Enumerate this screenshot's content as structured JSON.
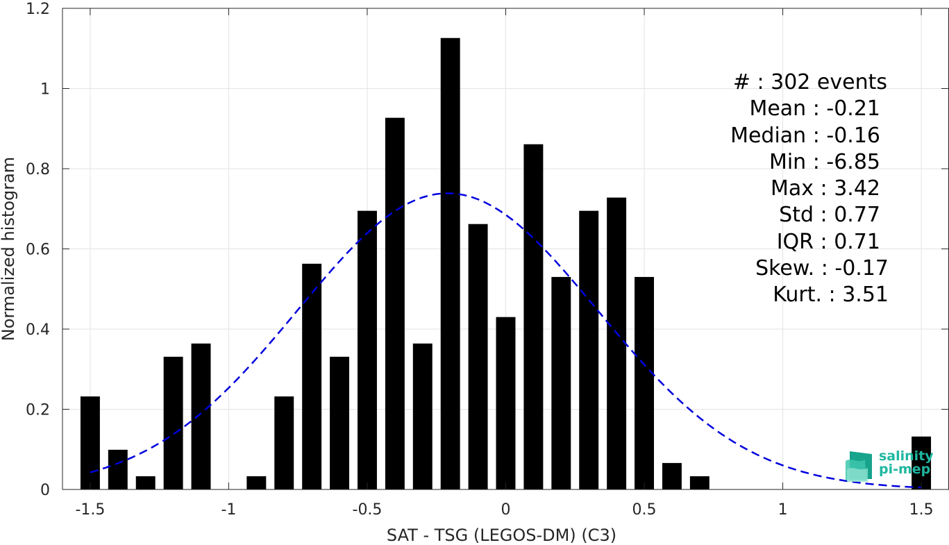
{
  "chart_data": {
    "type": "bar",
    "xlabel": "SAT - TSG (LEGOS-DM) (C3)",
    "ylabel": "Normalized histogram",
    "xlim": [
      -1.6,
      1.6
    ],
    "ylim": [
      0,
      1.2
    ],
    "xticks": [
      -1.5,
      -1,
      -0.5,
      0,
      0.5,
      1,
      1.5
    ],
    "xtick_labels": [
      "-1.5",
      "-1",
      "-0.5",
      "0",
      "0.5",
      "1",
      "1.5"
    ],
    "yticks": [
      0,
      0.2,
      0.4,
      0.6,
      0.8,
      1,
      1.2
    ],
    "ytick_labels": [
      "0",
      "0.2",
      "0.4",
      "0.6",
      "0.8",
      "1",
      "1.2"
    ],
    "grid": true,
    "bar_color": "#000000",
    "bar_width": 0.07,
    "bars": [
      {
        "x": -1.5,
        "y": 0.232
      },
      {
        "x": -1.4,
        "y": 0.099
      },
      {
        "x": -1.3,
        "y": 0.033
      },
      {
        "x": -1.2,
        "y": 0.331
      },
      {
        "x": -1.1,
        "y": 0.364
      },
      {
        "x": -0.9,
        "y": 0.033
      },
      {
        "x": -0.8,
        "y": 0.232
      },
      {
        "x": -0.7,
        "y": 0.563
      },
      {
        "x": -0.6,
        "y": 0.331
      },
      {
        "x": -0.5,
        "y": 0.695
      },
      {
        "x": -0.4,
        "y": 0.927
      },
      {
        "x": -0.3,
        "y": 0.364
      },
      {
        "x": -0.2,
        "y": 1.126
      },
      {
        "x": -0.1,
        "y": 0.662
      },
      {
        "x": 0.0,
        "y": 0.43
      },
      {
        "x": 0.1,
        "y": 0.861
      },
      {
        "x": 0.2,
        "y": 0.53
      },
      {
        "x": 0.3,
        "y": 0.695
      },
      {
        "x": 0.4,
        "y": 0.728
      },
      {
        "x": 0.5,
        "y": 0.53
      },
      {
        "x": 0.6,
        "y": 0.066
      },
      {
        "x": 0.7,
        "y": 0.033
      },
      {
        "x": 1.5,
        "y": 0.132
      }
    ],
    "fit": {
      "type": "normal",
      "mean": -0.21,
      "std": 0.54,
      "x_range": [
        -1.5,
        1.5
      ],
      "color": "#0000dd",
      "style": "dashed"
    }
  },
  "stats": {
    "count": "#  : 302 events",
    "mean": "Mean : -0.21",
    "median": "Median : -0.16",
    "min": "Min : -6.85",
    "max": "Max : 3.42",
    "std": "Std : 0.77",
    "iqr": "IQR : 0.71",
    "skew": "Skew. : -0.17",
    "kurt": "Kurt. : 3.51"
  },
  "logo": {
    "line1": "salinity",
    "line2": "pi-mep",
    "color": "#1fb7a0"
  }
}
